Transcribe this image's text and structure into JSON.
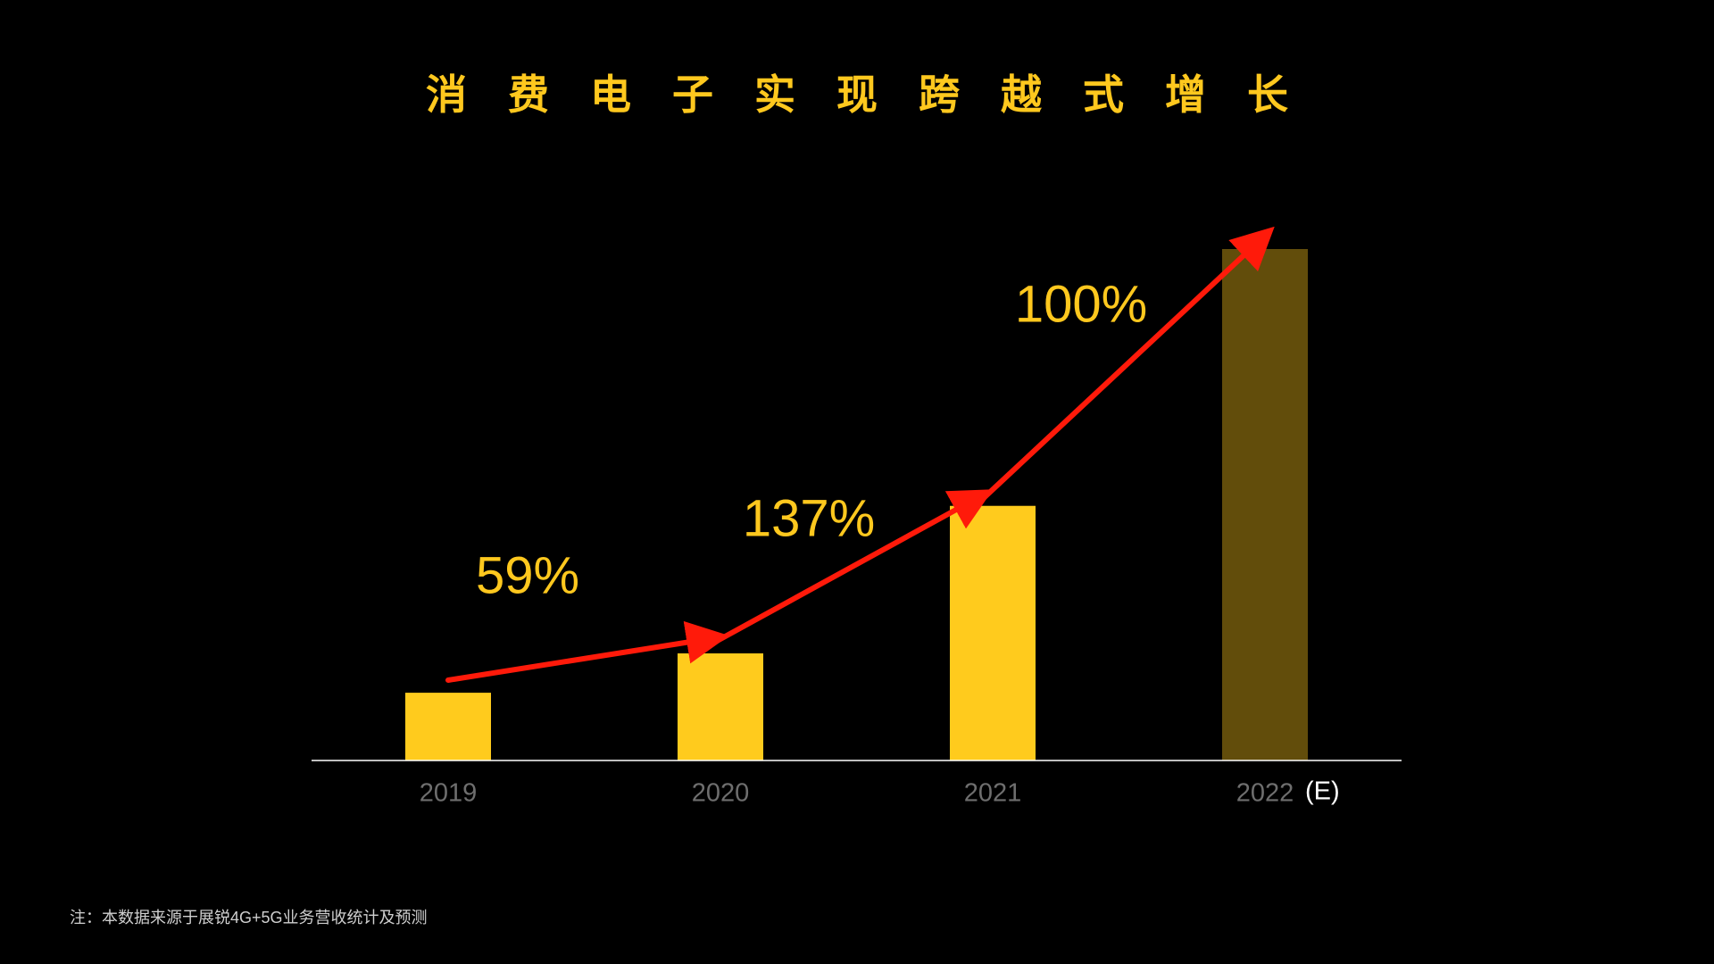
{
  "chart_data": {
    "type": "bar",
    "title": "消费电子实现跨越式增长",
    "categories": [
      "2019",
      "2020",
      "2021",
      "2022"
    ],
    "estimate_note": "(E)",
    "values": [
      62,
      98,
      233,
      468
    ],
    "colors": [
      "#ffcb1d",
      "#ffcb1d",
      "#ffcb1d",
      "#624d0b"
    ],
    "annotations": [
      "59%",
      "137%",
      "100%"
    ],
    "arrow_color": "#ff1a0a",
    "note": "注：本数据来源于展锐4G+5G业务营收统计及预测"
  }
}
